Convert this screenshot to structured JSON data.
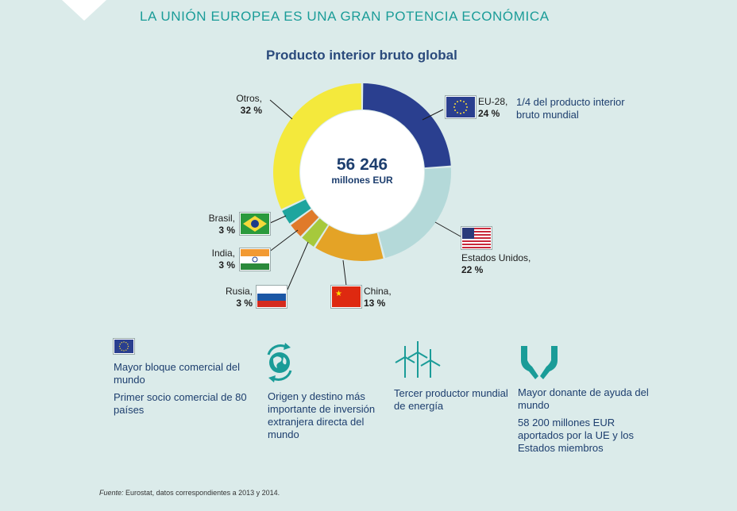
{
  "headline": "LA UNIÓN EUROPEA ES UNA GRAN POTENCIA ECONÓMICA",
  "chart_data": {
    "type": "pie",
    "title": "Producto interior bruto global",
    "center_value": "56 246",
    "center_unit": "millones EUR",
    "categories": [
      "EU-28",
      "Estados Unidos",
      "China",
      "Rusia",
      "India",
      "Brasil",
      "Otros"
    ],
    "values": [
      24,
      22,
      13,
      3,
      3,
      3,
      32
    ],
    "value_labels": [
      "24 %",
      "22 %",
      "13 %",
      "3 %",
      "3 %",
      "3 %",
      "32 %"
    ],
    "label_names": [
      "EU-28,",
      "Estados Unidos,",
      "China,",
      "Rusia,",
      "India,",
      "Brasil,",
      "Otros,"
    ],
    "colors": [
      "#2a3f8f",
      "#b4d9d9",
      "#e4a326",
      "#a6c93c",
      "#e07a2a",
      "#1ea59e",
      "#f4e93c"
    ]
  },
  "note": "1/4 del producto interior bruto mundial",
  "facts": [
    {
      "lines": [
        "Mayor bloque comercial del mundo",
        "Primer socio comercial de 80 países"
      ],
      "icon": "eu-flag-icon"
    },
    {
      "lines": [
        "Origen y destino más importante de inversión extranjera directa del mundo"
      ],
      "icon": "globe-recycle-icon"
    },
    {
      "lines": [
        "Tercer productor mundial de energía"
      ],
      "icon": "wind-turbines-icon"
    },
    {
      "lines": [
        "Mayor donante de ayuda del mundo",
        "58 200 millones EUR aportados por la UE y los Estados miembros"
      ],
      "icon": "hands-icon"
    }
  ],
  "source_label": "Fuente:",
  "source_text": "Eurostat, datos correspondientes a 2013 y 2014."
}
